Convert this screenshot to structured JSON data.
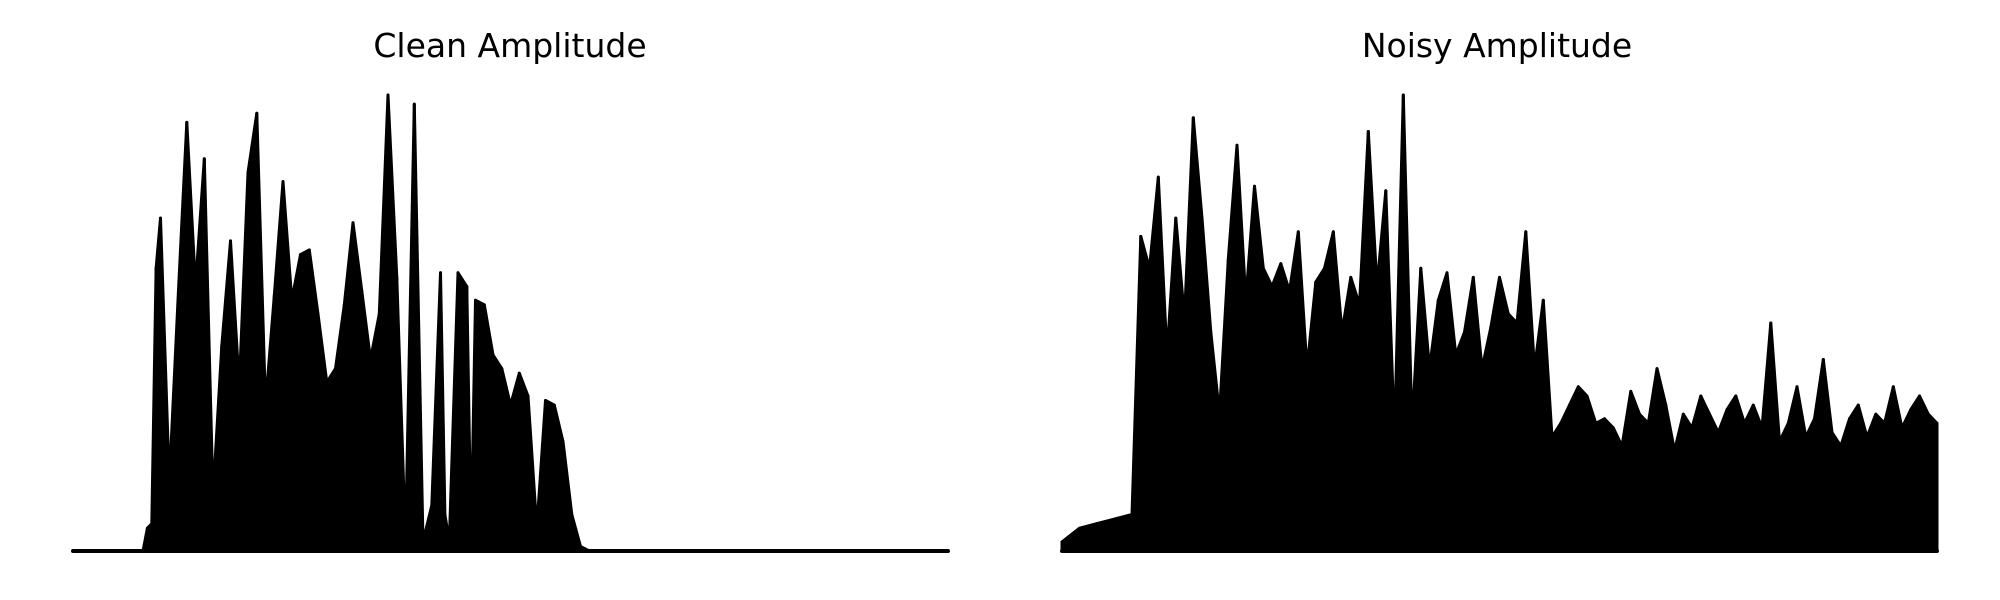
{
  "chart_data": [
    {
      "type": "area",
      "title": "Clean Amplitude",
      "xlabel": "",
      "ylabel": "",
      "axes_visible": false,
      "grid": false,
      "color": "#000000",
      "ylim": [
        0,
        1.0
      ],
      "x": [
        0,
        0.02,
        0.04,
        0.06,
        0.08,
        0.085,
        0.09,
        0.095,
        0.1,
        0.11,
        0.12,
        0.13,
        0.14,
        0.15,
        0.16,
        0.17,
        0.18,
        0.19,
        0.2,
        0.21,
        0.22,
        0.23,
        0.24,
        0.25,
        0.26,
        0.27,
        0.28,
        0.29,
        0.3,
        0.31,
        0.32,
        0.33,
        0.34,
        0.35,
        0.36,
        0.37,
        0.38,
        0.39,
        0.4,
        0.41,
        0.42,
        0.425,
        0.43,
        0.44,
        0.45,
        0.455,
        0.46,
        0.47,
        0.48,
        0.49,
        0.5,
        0.51,
        0.52,
        0.53,
        0.54,
        0.55,
        0.56,
        0.57,
        0.58,
        0.59,
        0.6,
        0.61,
        0.62,
        0.63,
        0.64,
        0.65,
        0.66,
        0.67,
        0.68,
        0.69,
        0.7,
        0.75,
        0.8,
        0.85,
        0.9,
        0.95,
        1.0
      ],
      "y": [
        0.0,
        0.0,
        0.0,
        0.0,
        0.0,
        0.05,
        0.06,
        0.62,
        0.73,
        0.15,
        0.55,
        0.94,
        0.58,
        0.86,
        0.12,
        0.45,
        0.68,
        0.36,
        0.83,
        0.96,
        0.32,
        0.56,
        0.81,
        0.55,
        0.65,
        0.66,
        0.52,
        0.37,
        0.4,
        0.54,
        0.72,
        0.57,
        0.42,
        0.52,
        1.0,
        0.6,
        0.02,
        0.98,
        0.02,
        0.1,
        0.61,
        0.08,
        0.02,
        0.61,
        0.58,
        0.02,
        0.55,
        0.54,
        0.43,
        0.4,
        0.32,
        0.39,
        0.34,
        0.05,
        0.33,
        0.32,
        0.24,
        0.08,
        0.01,
        0.0,
        0.0,
        0.0,
        0.0,
        0.0,
        0.0,
        0.0,
        0.0,
        0.0,
        0.0,
        0.0,
        0.0,
        0.0,
        0.0,
        0.0,
        0.0,
        0.0,
        0.0
      ]
    },
    {
      "type": "area",
      "title": "Noisy Amplitude",
      "xlabel": "",
      "ylabel": "",
      "axes_visible": false,
      "grid": false,
      "color": "#000000",
      "ylim": [
        0,
        1.0
      ],
      "x": [
        0,
        0.02,
        0.04,
        0.06,
        0.08,
        0.09,
        0.1,
        0.11,
        0.12,
        0.13,
        0.14,
        0.15,
        0.16,
        0.17,
        0.18,
        0.19,
        0.2,
        0.21,
        0.22,
        0.23,
        0.24,
        0.25,
        0.26,
        0.27,
        0.28,
        0.29,
        0.3,
        0.31,
        0.32,
        0.33,
        0.34,
        0.35,
        0.36,
        0.37,
        0.38,
        0.39,
        0.4,
        0.41,
        0.42,
        0.43,
        0.44,
        0.45,
        0.46,
        0.47,
        0.48,
        0.49,
        0.5,
        0.51,
        0.52,
        0.53,
        0.54,
        0.55,
        0.56,
        0.57,
        0.58,
        0.59,
        0.6,
        0.61,
        0.62,
        0.63,
        0.64,
        0.65,
        0.66,
        0.67,
        0.68,
        0.69,
        0.7,
        0.71,
        0.72,
        0.73,
        0.74,
        0.75,
        0.76,
        0.77,
        0.78,
        0.79,
        0.8,
        0.81,
        0.82,
        0.83,
        0.84,
        0.85,
        0.86,
        0.87,
        0.88,
        0.89,
        0.9,
        0.91,
        0.92,
        0.93,
        0.94,
        0.95,
        0.96,
        0.97,
        0.98,
        0.99,
        1.0
      ],
      "y": [
        0.02,
        0.05,
        0.06,
        0.07,
        0.08,
        0.69,
        0.62,
        0.82,
        0.43,
        0.73,
        0.51,
        0.95,
        0.73,
        0.48,
        0.3,
        0.64,
        0.89,
        0.55,
        0.8,
        0.62,
        0.58,
        0.63,
        0.57,
        0.7,
        0.4,
        0.59,
        0.62,
        0.7,
        0.48,
        0.6,
        0.54,
        0.92,
        0.58,
        0.79,
        0.25,
        1.0,
        0.27,
        0.62,
        0.4,
        0.55,
        0.61,
        0.43,
        0.48,
        0.6,
        0.4,
        0.49,
        0.6,
        0.52,
        0.5,
        0.7,
        0.4,
        0.55,
        0.25,
        0.28,
        0.32,
        0.36,
        0.34,
        0.28,
        0.29,
        0.27,
        0.23,
        0.35,
        0.3,
        0.28,
        0.4,
        0.32,
        0.22,
        0.3,
        0.27,
        0.34,
        0.3,
        0.26,
        0.31,
        0.34,
        0.28,
        0.32,
        0.27,
        0.5,
        0.24,
        0.28,
        0.36,
        0.25,
        0.29,
        0.42,
        0.26,
        0.23,
        0.29,
        0.32,
        0.25,
        0.3,
        0.28,
        0.36,
        0.27,
        0.31,
        0.34,
        0.3,
        0.28
      ]
    }
  ]
}
